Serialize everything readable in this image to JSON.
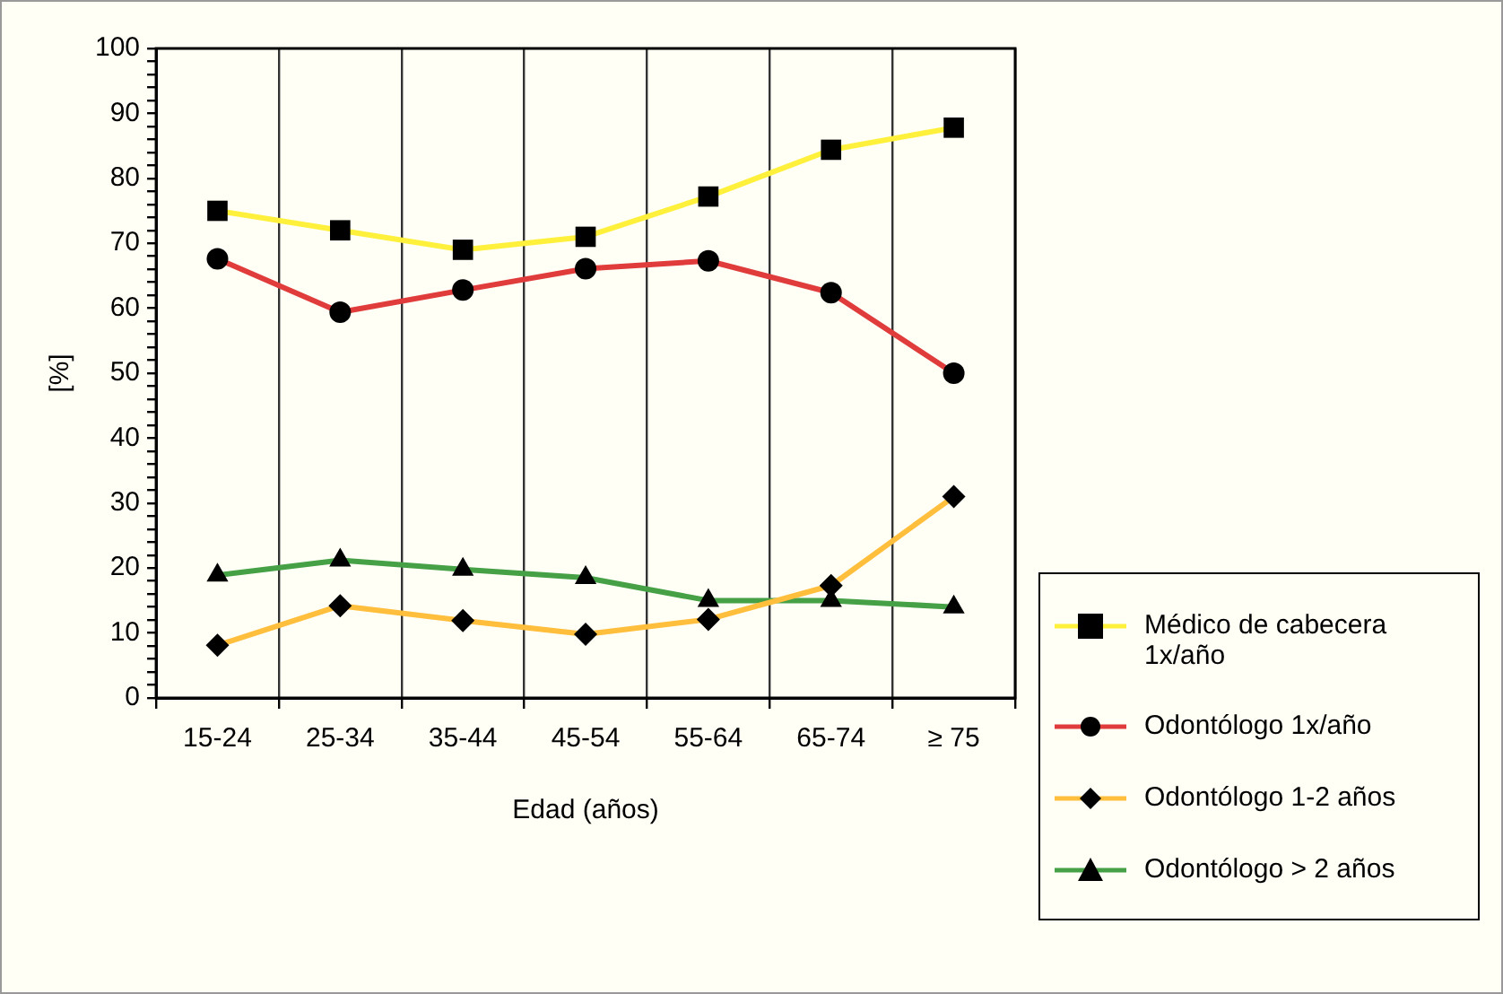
{
  "chart_data": {
    "type": "line",
    "xlabel": "Edad (años)",
    "ylabel": "[%]",
    "categories": [
      "15-24",
      "25-34",
      "35-44",
      "45-54",
      "55-64",
      "65-74",
      "≥ 75"
    ],
    "series": [
      {
        "name": "Médico de cabecera 1x/año",
        "color": "#fff03c",
        "marker": "square",
        "values": [
          75,
          72,
          69,
          71,
          77.2,
          84.4,
          87.8
        ]
      },
      {
        "name": "Odontólogo 1x/año",
        "color": "#e03c3c",
        "marker": "circle",
        "values": [
          67.6,
          59.4,
          62.8,
          66.1,
          67.3,
          62.4,
          50
        ]
      },
      {
        "name": "Odontólogo 1-2 años",
        "color": "#ffbe3c",
        "marker": "diamond",
        "values": [
          8.1,
          14.2,
          11.9,
          9.8,
          12.1,
          17.3,
          31
        ]
      },
      {
        "name": "Odontólogo > 2 años",
        "color": "#46a046",
        "marker": "triangle",
        "values": [
          18.9,
          21.2,
          19.8,
          18.5,
          15,
          15,
          14
        ]
      }
    ],
    "ylim": [
      0,
      100
    ],
    "yticks": [
      0,
      {
        "value": 2,
        "label": null
      },
      {
        "value": 4,
        "label": null
      },
      {
        "value": 6,
        "label": null
      },
      {
        "value": 8,
        "label": null
      },
      10,
      {
        "value": 12,
        "label": null
      },
      {
        "value": 14,
        "label": null
      },
      {
        "value": 16,
        "label": null
      },
      {
        "value": 18,
        "label": null
      },
      20,
      {
        "value": 22,
        "label": null
      },
      {
        "value": 24,
        "label": null
      },
      {
        "value": 26,
        "label": null
      },
      {
        "value": 28,
        "label": null
      },
      30,
      {
        "value": 32,
        "label": null
      },
      {
        "value": 34,
        "label": null
      },
      {
        "value": 36,
        "label": null
      },
      {
        "value": 38,
        "label": null
      },
      40,
      {
        "value": 42,
        "label": null
      },
      {
        "value": 44,
        "label": null
      },
      {
        "value": 46,
        "label": null
      },
      {
        "value": 48,
        "label": null
      },
      50,
      {
        "value": 52,
        "label": null
      },
      {
        "value": 54,
        "label": null
      },
      {
        "value": 56,
        "label": null
      },
      {
        "value": 58,
        "label": null
      },
      60,
      {
        "value": 62,
        "label": null
      },
      {
        "value": 64,
        "label": null
      },
      {
        "value": 66,
        "label": null
      },
      {
        "value": 68,
        "label": null
      },
      70,
      {
        "value": 72,
        "label": null
      },
      {
        "value": 74,
        "label": null
      },
      {
        "value": 76,
        "label": null
      },
      {
        "value": 78,
        "label": null
      },
      80,
      {
        "value": 82,
        "label": null
      },
      {
        "value": 84,
        "label": null
      },
      {
        "value": 86,
        "label": null
      },
      {
        "value": 88,
        "label": null
      },
      90,
      {
        "value": 92,
        "label": null
      },
      {
        "value": 94,
        "label": null
      },
      {
        "value": 96,
        "label": null
      },
      {
        "value": 98,
        "label": null
      },
      100
    ],
    "grid": "x",
    "legend": "right",
    "line_style": "solid"
  }
}
